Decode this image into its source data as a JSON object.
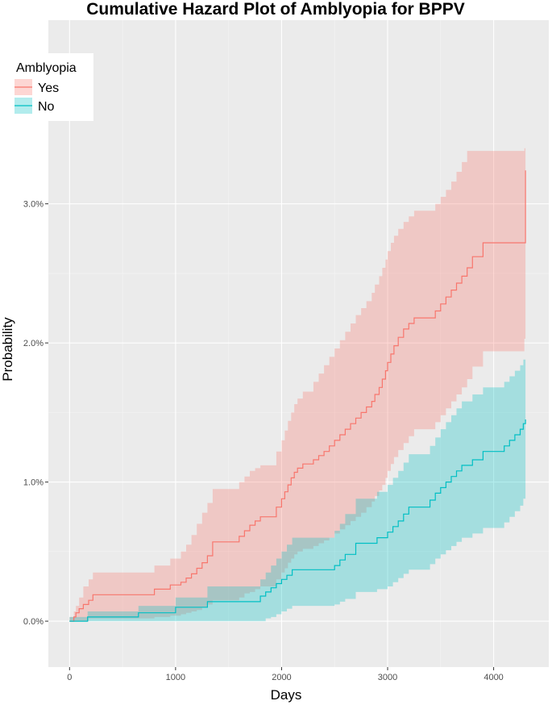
{
  "chart_data": {
    "type": "line",
    "subtype": "step",
    "title": "Cumulative Hazard Plot of Amblyopia for BPPV",
    "xlabel": "Days",
    "ylabel": "Probability",
    "xlim": [
      -200,
      4520
    ],
    "ylim": [
      -0.0033,
      0.0432
    ],
    "x_ticks": [
      0,
      1000,
      2000,
      3000,
      4000
    ],
    "x_tick_labels": [
      "0",
      "1000",
      "2000",
      "3000",
      "4000"
    ],
    "y_ticks": [
      0,
      0.01,
      0.02,
      0.03
    ],
    "y_tick_labels": [
      "0.0%",
      "1.0%",
      "2.0%",
      "3.0%"
    ],
    "grid": true,
    "legend": {
      "title": "Amblyopia",
      "position": "top-left"
    },
    "series": [
      {
        "name": "Yes",
        "color": "#F8766D",
        "fill": "#F4B5B2",
        "x": [
          0,
          40,
          60,
          90,
          130,
          180,
          220,
          800,
          950,
          1050,
          1100,
          1150,
          1200,
          1250,
          1300,
          1350,
          1600,
          1650,
          1700,
          1750,
          1800,
          1950,
          2000,
          2030,
          2060,
          2090,
          2120,
          2150,
          2200,
          2300,
          2350,
          2400,
          2450,
          2500,
          2550,
          2600,
          2650,
          2700,
          2750,
          2800,
          2850,
          2880,
          2920,
          2950,
          2980,
          3000,
          3030,
          3060,
          3100,
          3150,
          3200,
          3250,
          3450,
          3500,
          3550,
          3600,
          3650,
          3700,
          3750,
          3800,
          3900,
          4290,
          4300
        ],
        "values": [
          0,
          0.0003,
          0.0006,
          0.0009,
          0.0012,
          0.0015,
          0.0019,
          0.0023,
          0.0026,
          0.0028,
          0.0031,
          0.0034,
          0.0038,
          0.0042,
          0.0047,
          0.0057,
          0.0061,
          0.0065,
          0.0069,
          0.0072,
          0.0075,
          0.0082,
          0.0088,
          0.0093,
          0.0098,
          0.0103,
          0.0107,
          0.011,
          0.0113,
          0.0116,
          0.0119,
          0.0122,
          0.0126,
          0.013,
          0.0134,
          0.0138,
          0.0142,
          0.0146,
          0.015,
          0.0154,
          0.0158,
          0.0163,
          0.0168,
          0.0174,
          0.018,
          0.0186,
          0.0192,
          0.0198,
          0.0204,
          0.021,
          0.0214,
          0.0218,
          0.0223,
          0.0228,
          0.0233,
          0.0238,
          0.0243,
          0.0248,
          0.0254,
          0.0262,
          0.0272,
          0.0272,
          0.0324
        ],
        "lower": [
          0,
          0,
          0,
          0,
          0,
          0.0002,
          0.0002,
          0.0003,
          0.0004,
          0.0005,
          0.0006,
          0.0007,
          0.0008,
          0.001,
          0.0012,
          0.0015,
          0.0017,
          0.002,
          0.0021,
          0.0023,
          0.0025,
          0.003,
          0.0035,
          0.0038,
          0.0042,
          0.0045,
          0.0048,
          0.005,
          0.0052,
          0.0054,
          0.0056,
          0.0058,
          0.006,
          0.0063,
          0.0066,
          0.0069,
          0.0072,
          0.0075,
          0.0078,
          0.0082,
          0.0086,
          0.009,
          0.0094,
          0.0098,
          0.0103,
          0.0108,
          0.0113,
          0.0118,
          0.0123,
          0.0128,
          0.0133,
          0.0138,
          0.0143,
          0.0148,
          0.0153,
          0.0158,
          0.0163,
          0.0168,
          0.0174,
          0.0183,
          0.0194,
          0.0203,
          0.0203
        ],
        "upper": [
          0.0003,
          0.0007,
          0.0011,
          0.0017,
          0.0025,
          0.003,
          0.0035,
          0.004,
          0.0045,
          0.005,
          0.0055,
          0.0062,
          0.007,
          0.0078,
          0.0085,
          0.0095,
          0.01,
          0.0104,
          0.0108,
          0.011,
          0.0112,
          0.0122,
          0.013,
          0.0137,
          0.0144,
          0.015,
          0.0156,
          0.016,
          0.0165,
          0.0172,
          0.0178,
          0.0184,
          0.019,
          0.0196,
          0.0202,
          0.0208,
          0.0214,
          0.022,
          0.0225,
          0.023,
          0.0236,
          0.0242,
          0.0248,
          0.0254,
          0.026,
          0.0266,
          0.0272,
          0.0277,
          0.0282,
          0.0287,
          0.0291,
          0.0295,
          0.03,
          0.0305,
          0.031,
          0.0316,
          0.0323,
          0.033,
          0.0338,
          0.0338,
          0.0338,
          0.034,
          0.034
        ]
      },
      {
        "name": "No",
        "color": "#00BFC4",
        "fill": "#A3DFE0",
        "x": [
          0,
          170,
          650,
          1000,
          1300,
          1800,
          1850,
          1900,
          1950,
          2000,
          2050,
          2100,
          2500,
          2550,
          2600,
          2700,
          2900,
          3000,
          3050,
          3100,
          3150,
          3200,
          3400,
          3450,
          3500,
          3550,
          3600,
          3650,
          3700,
          3800,
          3900,
          4100,
          4150,
          4200,
          4250,
          4280,
          4300
        ],
        "values": [
          0,
          0.0003,
          0.0006,
          0.001,
          0.0014,
          0.0018,
          0.0021,
          0.0024,
          0.0027,
          0.003,
          0.0033,
          0.0037,
          0.004,
          0.0044,
          0.0048,
          0.0056,
          0.006,
          0.0064,
          0.0068,
          0.0072,
          0.0077,
          0.0082,
          0.0087,
          0.0092,
          0.0096,
          0.01,
          0.0104,
          0.0108,
          0.0112,
          0.0116,
          0.0122,
          0.0126,
          0.013,
          0.0134,
          0.0138,
          0.0142,
          0.0145
        ],
        "lower": [
          0,
          0,
          0,
          0,
          0,
          0,
          0.0002,
          0.0003,
          0.0005,
          0.0007,
          0.0009,
          0.0011,
          0.0012,
          0.0014,
          0.0016,
          0.0021,
          0.0023,
          0.0025,
          0.0028,
          0.0031,
          0.0034,
          0.0037,
          0.0041,
          0.0045,
          0.0048,
          0.0051,
          0.0054,
          0.0057,
          0.006,
          0.0063,
          0.0067,
          0.0071,
          0.0075,
          0.0079,
          0.0083,
          0.0088,
          0.0098
        ],
        "upper": [
          0.0003,
          0.0007,
          0.0011,
          0.0017,
          0.0025,
          0.003,
          0.0035,
          0.004,
          0.0045,
          0.005,
          0.0055,
          0.006,
          0.0065,
          0.007,
          0.0077,
          0.0088,
          0.0093,
          0.0098,
          0.0103,
          0.0108,
          0.0114,
          0.012,
          0.0126,
          0.0132,
          0.0138,
          0.0143,
          0.0148,
          0.0153,
          0.0158,
          0.0163,
          0.0168,
          0.0172,
          0.0176,
          0.018,
          0.0184,
          0.0188,
          0.0191
        ]
      }
    ]
  }
}
